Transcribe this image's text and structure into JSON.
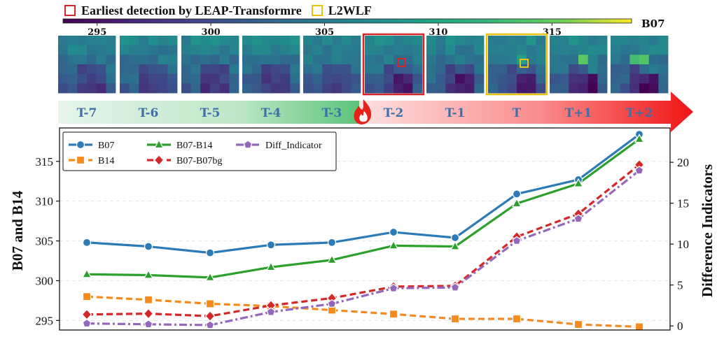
{
  "header_legend": {
    "earliest_leap": {
      "label": "Earliest detection by LEAP-Transformre",
      "color": "#d62728"
    },
    "l2wlf": {
      "label": "L2WLF",
      "color": "#e8c20f"
    }
  },
  "colorbar": {
    "band_label": "B07",
    "ticks": [
      "295",
      "300",
      "305",
      "310",
      "315"
    ],
    "tick_values": [
      295,
      300,
      305,
      310,
      315
    ],
    "range": [
      293.5,
      318.5
    ]
  },
  "timeline": {
    "labels": [
      "T-7",
      "T-6",
      "T-5",
      "T-4",
      "T-3",
      "T-2",
      "T-1",
      "T",
      "T+1",
      "T+2"
    ],
    "fire_icon": "fire-icon",
    "leap_detection_index": 5,
    "l2wlf_detection_index": 7
  },
  "chart_data": {
    "type": "line",
    "x": [
      "T-7",
      "T-6",
      "T-5",
      "T-4",
      "T-3",
      "T-2",
      "T-1",
      "T",
      "T+1",
      "T+2"
    ],
    "left_axis": {
      "label": "B07 and B14",
      "ticks": [
        295,
        300,
        305,
        310,
        315
      ],
      "ylim": [
        293.8,
        319.2
      ]
    },
    "right_axis": {
      "label": "Difference Indicators",
      "ticks": [
        0,
        5,
        10,
        15,
        20
      ],
      "ylim": [
        -0.5,
        24.2
      ]
    },
    "series": [
      {
        "name": "B07",
        "axis": "left",
        "color": "#2c7bb6",
        "marker": "circle",
        "dash": "solid",
        "values": [
          304.8,
          304.3,
          303.5,
          304.5,
          304.8,
          306.1,
          305.4,
          310.9,
          312.7,
          318.4
        ]
      },
      {
        "name": "B14",
        "axis": "left",
        "color": "#f58a1f",
        "marker": "square",
        "dash": "dashed",
        "values": [
          298.0,
          297.6,
          297.1,
          296.8,
          296.3,
          295.8,
          295.2,
          295.2,
          294.5,
          294.2
        ]
      },
      {
        "name": "B07-B14",
        "axis": "left",
        "color": "#2ca02c",
        "marker": "triangle",
        "dash": "solid",
        "values": [
          300.8,
          300.7,
          300.4,
          301.7,
          302.6,
          304.4,
          304.3,
          309.7,
          312.2,
          317.8
        ]
      },
      {
        "name": "B07-B07bg",
        "axis": "right",
        "color": "#d62728",
        "marker": "diamond",
        "dash": "dashed",
        "values": [
          1.4,
          1.5,
          1.2,
          2.5,
          3.4,
          4.8,
          4.9,
          10.9,
          13.7,
          19.7
        ]
      },
      {
        "name": "Diff_Indicator",
        "axis": "right",
        "color": "#9467bd",
        "marker": "pentagon",
        "dash": "dashdot",
        "values": [
          0.3,
          0.2,
          0.1,
          1.7,
          2.7,
          4.6,
          4.7,
          10.4,
          13.1,
          19.0
        ]
      }
    ],
    "legend_order": [
      "B07",
      "B07-B14",
      "Diff_Indicator",
      "B14",
      "B07-B07bg"
    ],
    "legend_location": "top-left",
    "grid": "horizontal-dashed"
  }
}
